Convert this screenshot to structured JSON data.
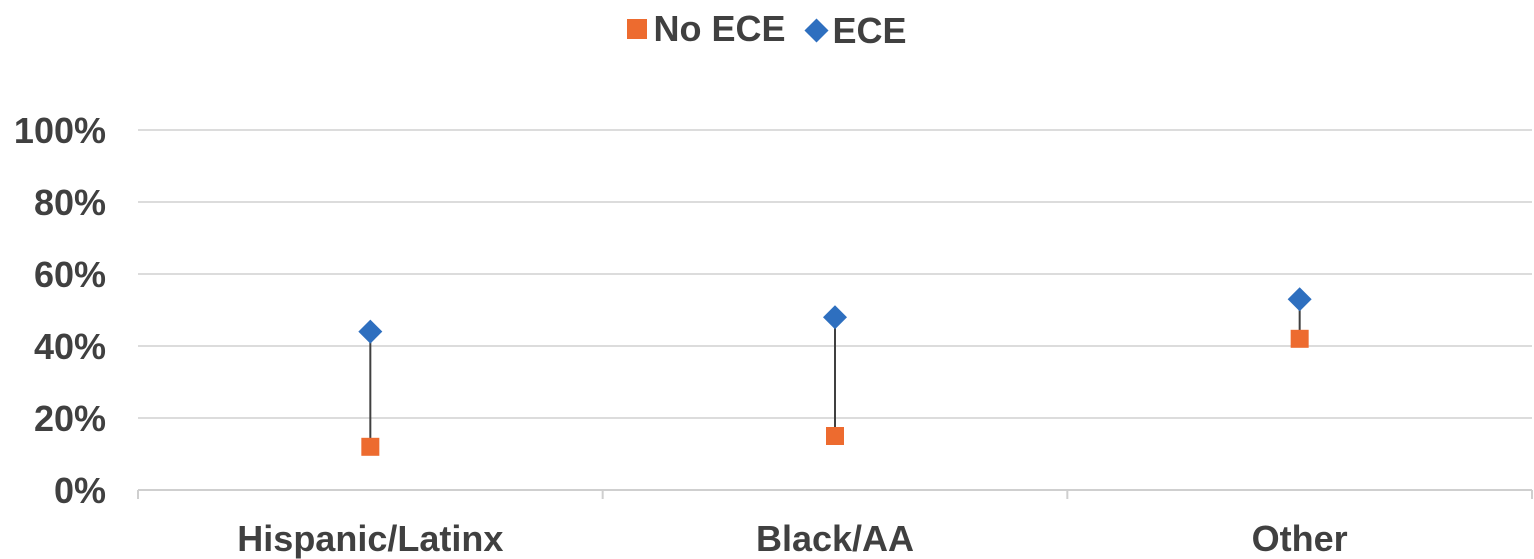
{
  "chart_data": {
    "type": "scatter",
    "categories": [
      "Hispanic/Latinx",
      "Black/AA",
      "Other"
    ],
    "series": [
      {
        "name": "No ECE",
        "marker": "square",
        "color": "#ED6B2F",
        "values": [
          12,
          15,
          42
        ]
      },
      {
        "name": "ECE",
        "marker": "diamond",
        "color": "#2E6FBF",
        "values": [
          44,
          48,
          53
        ]
      }
    ],
    "connector_color": "#404040",
    "ylim": [
      0,
      100
    ],
    "yticks": [
      0,
      20,
      40,
      60,
      80,
      100
    ],
    "ytick_labels": [
      "0%",
      "20%",
      "40%",
      "60%",
      "80%",
      "100%"
    ],
    "grid": true,
    "legend": "top-center"
  }
}
